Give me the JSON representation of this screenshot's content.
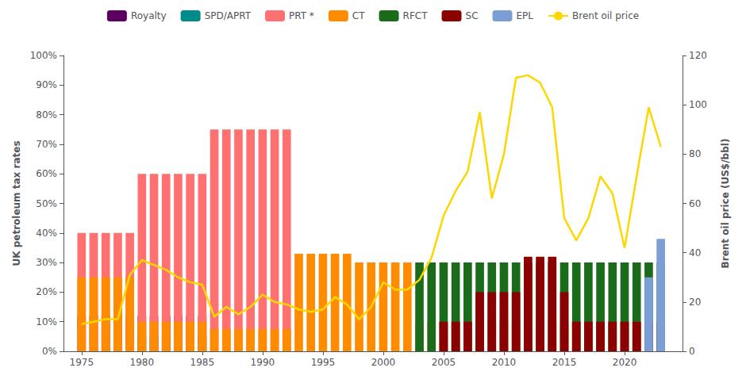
{
  "chart_data": {
    "type": "bar",
    "stacked": true,
    "grid": false,
    "legend": "top",
    "ylabel": "UK petroleum tax rates",
    "y2label": "Brent oil price (US$/bbl)",
    "x": [
      1975,
      1976,
      1977,
      1978,
      1979,
      1980,
      1981,
      1982,
      1983,
      1984,
      1985,
      1986,
      1987,
      1988,
      1989,
      1990,
      1991,
      1992,
      1993,
      1994,
      1995,
      1996,
      1997,
      1998,
      1999,
      2000,
      2001,
      2002,
      2003,
      2004,
      2005,
      2006,
      2007,
      2008,
      2009,
      2010,
      2011,
      2012,
      2013,
      2014,
      2015,
      2016,
      2017,
      2018,
      2019,
      2020,
      2021,
      2022,
      2023
    ],
    "xlim": [
      1973.5,
      2024.8
    ],
    "xticks": [
      1975,
      1980,
      1985,
      1990,
      1995,
      2000,
      2005,
      2010,
      2015,
      2020
    ],
    "ylim": [
      0,
      100
    ],
    "yticks": [
      {
        "value": 0,
        "label": "0%"
      },
      {
        "value": 10,
        "label": "10%"
      },
      {
        "value": 20,
        "label": "20%"
      },
      {
        "value": 30,
        "label": "30%"
      },
      {
        "value": 40,
        "label": "40%"
      },
      {
        "value": 50,
        "label": "50%"
      },
      {
        "value": 60,
        "label": "60%"
      },
      {
        "value": 70,
        "label": "70%"
      },
      {
        "value": 80,
        "label": "80%"
      },
      {
        "value": 90,
        "label": "90%"
      },
      {
        "value": 100,
        "label": "100%"
      }
    ],
    "y2lim": [
      0,
      120
    ],
    "y2ticks": [
      0,
      20,
      40,
      60,
      80,
      100,
      120
    ],
    "series": [
      {
        "name": "Royalty",
        "color": "#5c0060",
        "values": [
          12,
          12,
          12,
          12,
          12,
          12,
          12,
          12,
          12,
          12,
          12,
          0,
          0,
          0,
          0,
          0,
          0,
          0,
          0,
          0,
          0,
          0,
          0,
          0,
          0,
          0,
          0,
          0,
          0,
          0,
          0,
          0,
          0,
          0,
          0,
          0,
          0,
          0,
          0,
          0,
          0,
          0,
          0,
          0,
          0,
          0,
          0,
          0,
          0
        ]
      },
      {
        "name": "SPD/APRT",
        "color": "#008b8b",
        "values": [
          0,
          0,
          0,
          0,
          0,
          5,
          5,
          5,
          5,
          5,
          5,
          0,
          0,
          0,
          0,
          0,
          0,
          0,
          0,
          0,
          0,
          0,
          0,
          0,
          0,
          0,
          0,
          0,
          0,
          0,
          0,
          0,
          0,
          0,
          0,
          0,
          0,
          0,
          0,
          0,
          0,
          0,
          0,
          0,
          0,
          0,
          0,
          0,
          0
        ]
      },
      {
        "name": "PRT *",
        "color": "#ff7070",
        "values": [
          40,
          40,
          40,
          40,
          40,
          60,
          60,
          60,
          60,
          60,
          60,
          75,
          75,
          75,
          75,
          75,
          75,
          75,
          0,
          0,
          0,
          0,
          0,
          0,
          0,
          0,
          0,
          0,
          0,
          0,
          0,
          0,
          0,
          0,
          0,
          0,
          0,
          0,
          0,
          0,
          0,
          0,
          0,
          0,
          0,
          0,
          0,
          0,
          0
        ]
      },
      {
        "name": "CT",
        "color": "#ff8c00",
        "values": [
          25,
          25,
          25,
          25,
          25,
          10,
          10,
          10,
          10,
          10,
          10,
          7.5,
          7.5,
          7.5,
          7.5,
          7.5,
          7.5,
          7.5,
          33,
          33,
          33,
          33,
          33,
          30,
          30,
          30,
          30,
          30,
          10,
          10,
          10,
          10,
          10,
          10,
          10,
          10,
          10,
          10,
          10,
          10,
          10,
          10,
          10,
          10,
          10,
          10,
          10,
          10,
          10
        ]
      },
      {
        "name": "RFCT",
        "color": "#1a6b1a",
        "values": [
          0,
          0,
          0,
          0,
          0,
          0,
          0,
          0,
          0,
          0,
          0,
          0,
          0,
          0,
          0,
          0,
          0,
          0,
          0,
          0,
          0,
          0,
          0,
          0,
          0,
          0,
          0,
          0,
          30,
          30,
          30,
          30,
          30,
          30,
          30,
          30,
          30,
          30,
          30,
          30,
          30,
          30,
          30,
          30,
          30,
          30,
          30,
          30,
          30
        ]
      },
      {
        "name": "SC",
        "color": "#8b0000",
        "values": [
          0,
          0,
          0,
          0,
          0,
          0,
          0,
          0,
          0,
          0,
          0,
          0,
          0,
          0,
          0,
          0,
          0,
          0,
          0,
          0,
          0,
          0,
          0,
          0,
          0,
          0,
          0,
          0,
          0,
          0,
          10,
          10,
          10,
          20,
          20,
          20,
          20,
          32,
          32,
          32,
          20,
          10,
          10,
          10,
          10,
          10,
          10,
          10,
          10
        ]
      },
      {
        "name": "EPL",
        "color": "#7b9fd4",
        "values": [
          0,
          0,
          0,
          0,
          0,
          0,
          0,
          0,
          0,
          0,
          0,
          0,
          0,
          0,
          0,
          0,
          0,
          0,
          0,
          0,
          0,
          0,
          0,
          0,
          0,
          0,
          0,
          0,
          0,
          0,
          0,
          0,
          0,
          0,
          0,
          0,
          0,
          0,
          0,
          0,
          0,
          0,
          0,
          0,
          0,
          0,
          0,
          25,
          38
        ]
      },
      {
        "name": "Brent oil price",
        "type": "line",
        "axis": "y2",
        "color": "#ffd700",
        "values": [
          11,
          12,
          13,
          13,
          31,
          37,
          35,
          33,
          30,
          28,
          27,
          14,
          18,
          15,
          18,
          23,
          20,
          19,
          17,
          16,
          17,
          22,
          19,
          13,
          18,
          28,
          25,
          25,
          29,
          38,
          55,
          65,
          73,
          97,
          62,
          80,
          111,
          112,
          109,
          99,
          54,
          45,
          54,
          71,
          64,
          42,
          71,
          99,
          83
        ]
      }
    ]
  }
}
